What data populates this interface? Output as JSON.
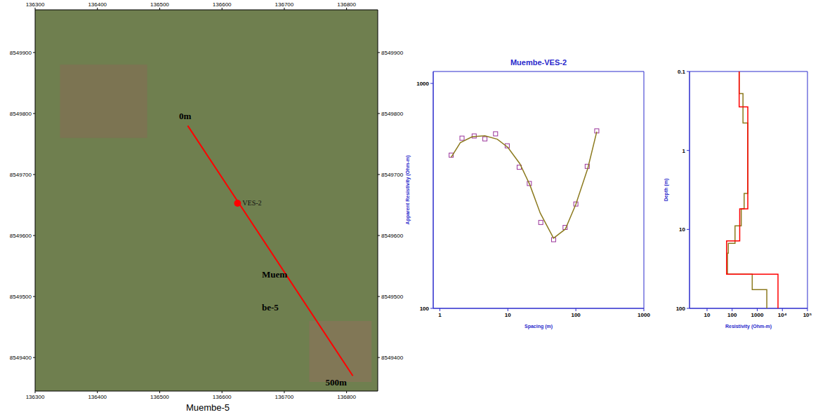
{
  "chart_data": [
    {
      "type": "map",
      "title": "Muembe-5",
      "xlim": [
        136300,
        136850
      ],
      "xticks": [
        136300,
        136400,
        136500,
        136600,
        136700,
        136800
      ],
      "ylim": [
        8549345,
        8549970
      ],
      "yticks": [
        8549400,
        8549500,
        8549600,
        8549700,
        8549800,
        8549900
      ],
      "grid": false,
      "profile": {
        "x": [
          136545,
          136810
        ],
        "y": [
          8549780,
          8549370
        ],
        "color": "#ff0000"
      },
      "points": [
        {
          "label": "VES-2",
          "x": 136625,
          "y": 8549653,
          "color": "#ff0000"
        }
      ],
      "annotations": [
        {
          "text": "0m",
          "x": 136531,
          "y": 8549794
        },
        {
          "text": "500m",
          "x": 136766,
          "y": 8549358
        },
        {
          "text": "Muem",
          "x": 136664,
          "y": 8549534
        },
        {
          "text": "be-5",
          "x": 136664,
          "y": 8549481
        }
      ]
    },
    {
      "type": "line",
      "title": "Muembe-VES-2",
      "xlabel": "Spacing (m)",
      "ylabel": "Apparent Resistivity (Ohm-m)",
      "log": true,
      "grid": false,
      "xlim": [
        0.8,
        1000
      ],
      "xticks": [
        1,
        10,
        100,
        1000
      ],
      "ylim": [
        100,
        1130
      ],
      "yticks": [
        100,
        1000
      ],
      "series": [
        {
          "type": "scatter",
          "marker": "square",
          "color": "#993399",
          "x": [
            1.47,
            2.12,
            3.2,
            4.6,
            6.6,
            9.8,
            14.7,
            20.7,
            30.5,
            47.1,
            69.5,
            100,
            147,
            203
          ],
          "values": [
            480,
            571,
            584,
            567,
            597,
            528,
            424,
            359,
            241,
            202,
            229,
            291,
            428,
            615
          ]
        },
        {
          "type": "line",
          "color": "#8c7a1e",
          "x": [
            1.47,
            2,
            3,
            4.6,
            7,
            10,
            15,
            21,
            30,
            47,
            70,
            100,
            150,
            203
          ],
          "values": [
            470,
            545,
            580,
            585,
            565,
            520,
            440,
            355,
            265,
            205,
            225,
            290,
            420,
            610
          ]
        }
      ]
    },
    {
      "type": "step",
      "xlabel": "Resistivity (Ohm-m)",
      "ylabel": "Depth (m)",
      "log": true,
      "grid": false,
      "xlim": [
        2,
        100000
      ],
      "xticks": [
        10,
        100,
        1000,
        {
          "value": 10000,
          "label": "10⁴"
        },
        {
          "value": 100000,
          "label": "10⁵"
        }
      ],
      "ylim": [
        0.1,
        100
      ],
      "yticks": [
        0.1,
        1,
        10,
        100
      ],
      "series": [
        {
          "color": "#8c7a1e",
          "resistivity": [
            190,
            270,
            420,
            300,
            230,
            130,
            70,
            65,
            630,
            2400
          ],
          "depths": [
            0.1,
            0.19,
            0.45,
            3.5,
            5.5,
            9,
            15,
            20,
            37,
            58,
            100
          ]
        },
        {
          "color": "#ff0000",
          "resistivity": [
            190,
            420,
            200,
            60,
            6700
          ],
          "depths": [
            0.1,
            0.28,
            5.5,
            14,
            37,
            100
          ]
        }
      ]
    }
  ]
}
